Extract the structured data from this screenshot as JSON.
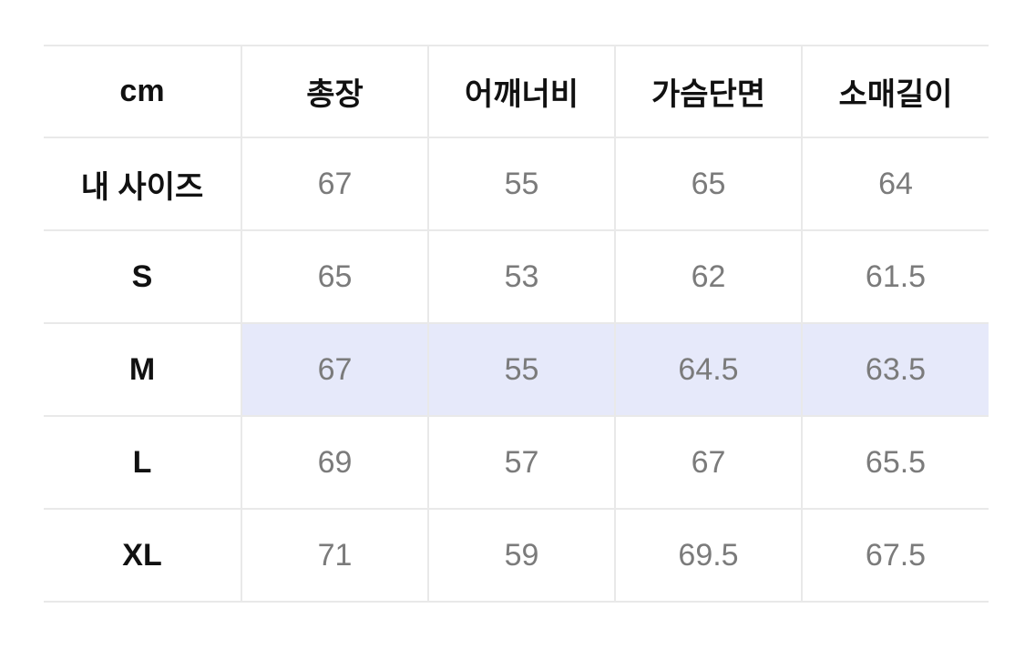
{
  "size_chart": {
    "unit_label": "cm",
    "columns": [
      "총장",
      "어깨너비",
      "가슴단면",
      "소매길이"
    ],
    "rows": [
      {
        "label": "내 사이즈",
        "values": [
          "67",
          "55",
          "65",
          "64"
        ],
        "highlighted": false
      },
      {
        "label": "S",
        "values": [
          "65",
          "53",
          "62",
          "61.5"
        ],
        "highlighted": false
      },
      {
        "label": "M",
        "values": [
          "67",
          "55",
          "64.5",
          "63.5"
        ],
        "highlighted": true
      },
      {
        "label": "L",
        "values": [
          "69",
          "57",
          "67",
          "65.5"
        ],
        "highlighted": false
      },
      {
        "label": "XL",
        "values": [
          "71",
          "59",
          "69.5",
          "67.5"
        ],
        "highlighted": false
      }
    ],
    "colors": {
      "highlight": "#e6e9fa",
      "grid": "#e9e9e9",
      "header_text": "#111111",
      "value_text": "#7b7b7b",
      "background": "#ffffff"
    }
  }
}
